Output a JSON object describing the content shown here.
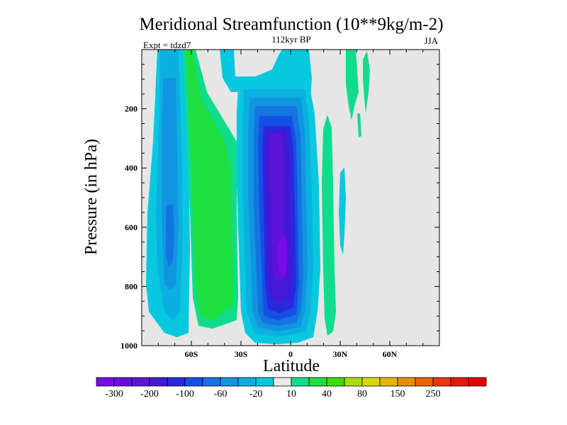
{
  "chart_data": {
    "type": "heatmap",
    "title": "Meridional Streamfunction (10**9kg/m-2)",
    "subtitle_center": "112kyr BP",
    "subtitle_left": "Expt = tdzd7",
    "subtitle_right": "JJA",
    "xlabel": "Latitude",
    "ylabel": "Pressure (in hPa)",
    "xlim": [
      -90,
      90
    ],
    "ylim": [
      1000,
      0
    ],
    "x_ticks": [
      {
        "value": -60,
        "label": "60S"
      },
      {
        "value": -30,
        "label": "30S"
      },
      {
        "value": 0,
        "label": "0"
      },
      {
        "value": 30,
        "label": "30N"
      },
      {
        "value": 60,
        "label": "60N"
      }
    ],
    "y_ticks": [
      {
        "value": 200,
        "label": "200"
      },
      {
        "value": 400,
        "label": "400"
      },
      {
        "value": 600,
        "label": "600"
      },
      {
        "value": 800,
        "label": "800"
      },
      {
        "value": 1000,
        "label": "1000"
      }
    ],
    "background_color": "#e6e6e6",
    "colorbar": {
      "colors": [
        "#7a0ae6",
        "#6a0cde",
        "#5a14d8",
        "#4418d6",
        "#2a28dc",
        "#1450e6",
        "#1474e0",
        "#1096e0",
        "#0cb0e0",
        "#08c8e0",
        "#e8e8e8",
        "#10dc8c",
        "#1ee040",
        "#3cdc10",
        "#a8dc10",
        "#d8d808",
        "#e8b408",
        "#e88c08",
        "#e86408",
        "#e83808",
        "#e81808",
        "#e80000"
      ],
      "labels": [
        "-300",
        "-200",
        "-100",
        "-60",
        "-20",
        "10",
        "40",
        "80",
        "150",
        "250"
      ]
    },
    "fields": [
      {
        "name": "southern-polar-negative-cell",
        "sign": "negative",
        "lat_range": [
          -83,
          -58
        ],
        "pressure_range": [
          0,
          990
        ],
        "min_value": -60
      },
      {
        "name": "southern-midlatitude-positive-cell",
        "sign": "positive",
        "lat_range": [
          -65,
          -25
        ],
        "pressure_range": [
          0,
          960
        ],
        "max_value": 40
      },
      {
        "name": "tropical-negative-cell",
        "sign": "negative",
        "lat_range": [
          -28,
          20
        ],
        "pressure_range": [
          0,
          1000
        ],
        "min_value": -300
      },
      {
        "name": "northern-subtropical-positive-cell",
        "sign": "positive",
        "lat_range": [
          18,
          30
        ],
        "pressure_range": [
          260,
          990
        ],
        "max_value": 10
      },
      {
        "name": "northern-upper-positive-cell",
        "sign": "positive",
        "lat_range": [
          34,
          48
        ],
        "pressure_range": [
          0,
          320
        ],
        "max_value": 10
      }
    ]
  }
}
